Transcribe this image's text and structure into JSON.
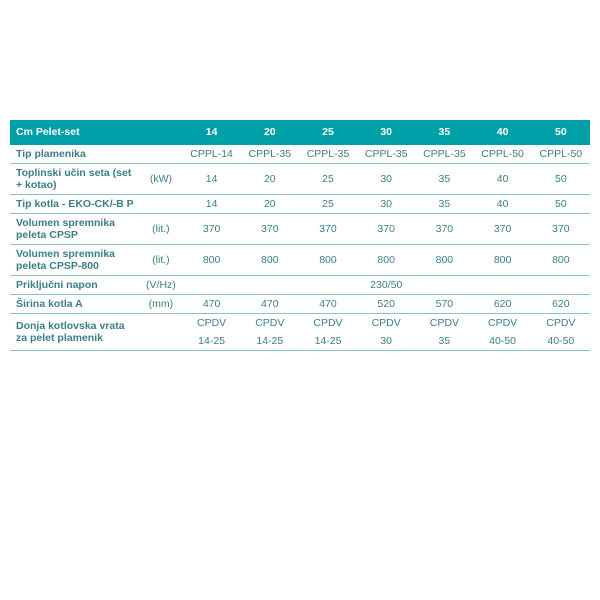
{
  "table": {
    "title": "Cm Pelet-set",
    "header_bg": "#00a0a8",
    "header_fg": "#ffffff",
    "text_color": "#3b7f86",
    "border_color": "#8cc5c9",
    "columns": [
      "14",
      "20",
      "25",
      "30",
      "35",
      "40",
      "50"
    ],
    "rows": [
      {
        "label": "Tip plamenika",
        "unit": "",
        "values": [
          "CPPL-14",
          "CPPL-35",
          "CPPL-35",
          "CPPL-35",
          "CPPL-35",
          "CPPL-50",
          "CPPL-50"
        ]
      },
      {
        "label": "Toplinski učin seta (set + kotao)",
        "unit": "(kW)",
        "values": [
          "14",
          "20",
          "25",
          "30",
          "35",
          "40",
          "50"
        ]
      },
      {
        "label": "Tip kotla - EKO-CK/-B P",
        "unit": "",
        "values": [
          "14",
          "20",
          "25",
          "30",
          "35",
          "40",
          "50"
        ]
      },
      {
        "label": "Volumen spremnika peleta CPSP",
        "unit": "(lit.)",
        "values": [
          "370",
          "370",
          "370",
          "370",
          "370",
          "370",
          "370"
        ]
      },
      {
        "label": "Volumen spremnika peleta CPSP-800",
        "unit": "(lit.)",
        "values": [
          "800",
          "800",
          "800",
          "800",
          "800",
          "800",
          "800"
        ]
      },
      {
        "label": "Priključni napon",
        "unit": "(V/Hz)",
        "span": true,
        "span_value": "230/50"
      },
      {
        "label": "Širina kotla A",
        "unit": "(mm)",
        "values": [
          "470",
          "470",
          "470",
          "520",
          "570",
          "620",
          "620"
        ]
      },
      {
        "label": "Donja kotlovska vrata za pelet plamenik",
        "unit": "",
        "twoLine": true,
        "line1": [
          "CPDV",
          "CPDV",
          "CPDV",
          "CPDV",
          "CPDV",
          "CPDV",
          "CPDV"
        ],
        "line2": [
          "14-25",
          "14-25",
          "14-25",
          "30",
          "35",
          "40-50",
          "40-50"
        ]
      }
    ]
  }
}
